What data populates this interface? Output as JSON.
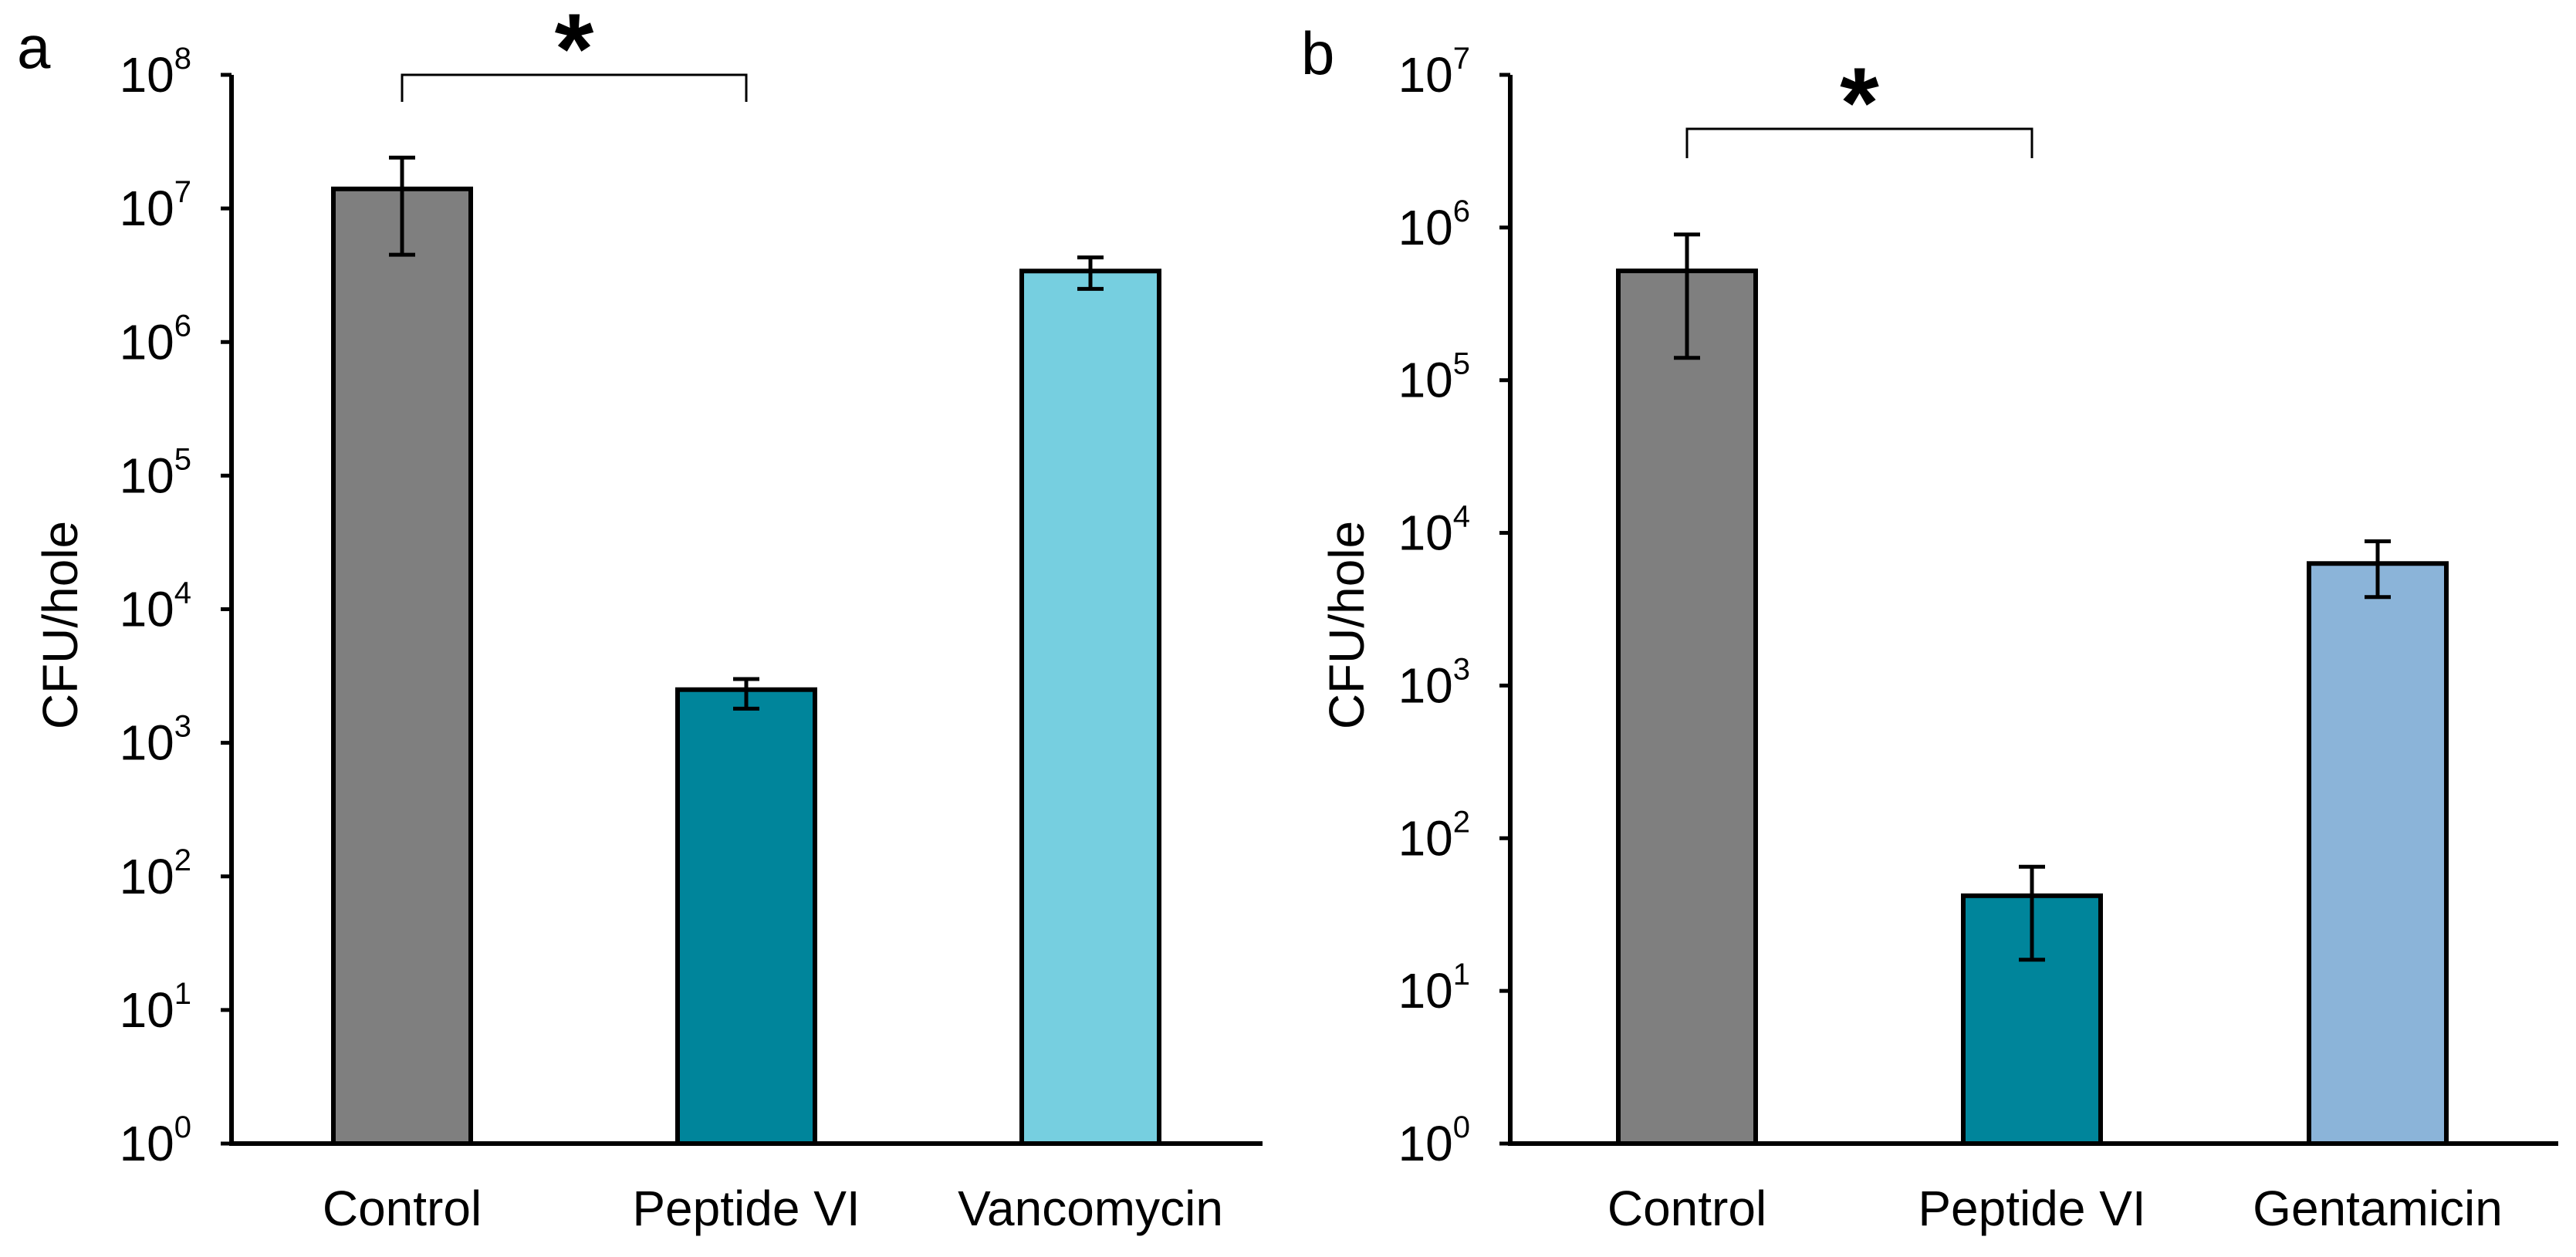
{
  "chart_data": [
    {
      "panel": "a",
      "type": "bar",
      "ylabel": "CFU/hole",
      "xlabel": "",
      "yscale": "log",
      "ylim": [
        1,
        100000000
      ],
      "yticks": [
        {
          "base": "10",
          "exp": "0"
        },
        {
          "base": "10",
          "exp": "1"
        },
        {
          "base": "10",
          "exp": "2"
        },
        {
          "base": "10",
          "exp": "3"
        },
        {
          "base": "10",
          "exp": "4"
        },
        {
          "base": "10",
          "exp": "5"
        },
        {
          "base": "10",
          "exp": "6"
        },
        {
          "base": "10",
          "exp": "7"
        },
        {
          "base": "10",
          "exp": "8"
        }
      ],
      "categories": [
        "Control",
        "Peptide VI",
        "Vancomycin"
      ],
      "values": [
        14000000,
        2500,
        3400000
      ],
      "error_low": [
        4500000,
        1800,
        2500000
      ],
      "error_high": [
        24000000,
        3000,
        4300000
      ],
      "colors": [
        "#7f7f7f",
        "#00859b",
        "#76cfe0"
      ],
      "significance": {
        "between": [
          0,
          1
        ],
        "label": "*"
      },
      "grid": false,
      "legend": "none"
    },
    {
      "panel": "b",
      "type": "bar",
      "ylabel": "CFU/hole",
      "xlabel": "",
      "yscale": "log",
      "ylim": [
        1,
        10000000
      ],
      "yticks": [
        {
          "base": "10",
          "exp": "0"
        },
        {
          "base": "10",
          "exp": "1"
        },
        {
          "base": "10",
          "exp": "2"
        },
        {
          "base": "10",
          "exp": "3"
        },
        {
          "base": "10",
          "exp": "4"
        },
        {
          "base": "10",
          "exp": "5"
        },
        {
          "base": "10",
          "exp": "6"
        },
        {
          "base": "10",
          "exp": "7"
        }
      ],
      "categories": [
        "Control",
        "Peptide VI",
        "Gentamicin"
      ],
      "values": [
        520000,
        42,
        6300
      ],
      "error_low": [
        140000,
        16,
        3800
      ],
      "error_high": [
        900000,
        65,
        8800
      ],
      "colors": [
        "#7f7f7f",
        "#00859b",
        "#8bb4d9"
      ],
      "significance": {
        "between": [
          0,
          1
        ],
        "label": "*"
      },
      "grid": false,
      "legend": "none"
    }
  ]
}
